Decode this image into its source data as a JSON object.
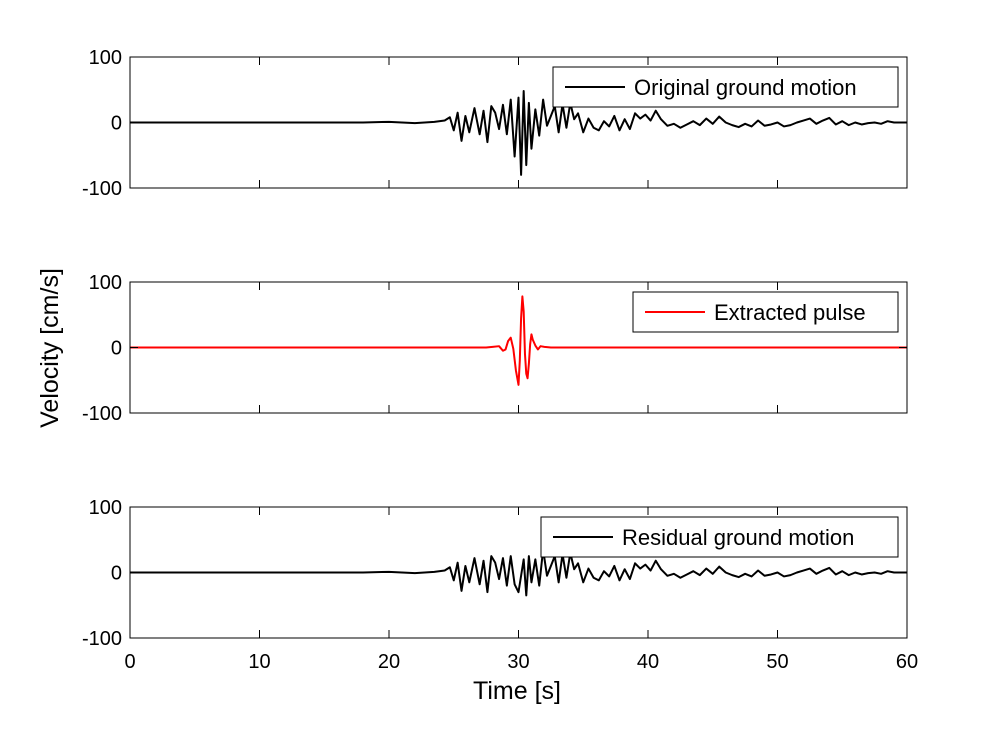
{
  "chart_data": [
    {
      "type": "line",
      "xlabel": "",
      "ylabel": "",
      "xlim": [
        0,
        60
      ],
      "ylim": [
        -100,
        100
      ],
      "xticks": [
        0,
        10,
        20,
        30,
        40,
        50,
        60
      ],
      "yticks": [
        100,
        0,
        -100
      ],
      "show_x_tick_labels": false,
      "grid": false,
      "legend_position": "top-right",
      "series": [
        {
          "name": "Original ground motion",
          "color": "#000000",
          "x": [
            0,
            10,
            18,
            20,
            22,
            23.5,
            24.3,
            24.7,
            25.0,
            25.3,
            25.6,
            25.9,
            26.2,
            26.6,
            27.0,
            27.3,
            27.6,
            27.9,
            28.2,
            28.5,
            28.8,
            29.1,
            29.4,
            29.7,
            30.0,
            30.2,
            30.4,
            30.6,
            30.8,
            31.0,
            31.3,
            31.6,
            31.9,
            32.2,
            32.5,
            32.8,
            33.1,
            33.4,
            33.7,
            34.0,
            34.3,
            34.6,
            35.0,
            35.4,
            35.8,
            36.2,
            36.6,
            37.0,
            37.4,
            37.8,
            38.2,
            38.6,
            39.0,
            39.4,
            39.8,
            40.2,
            40.6,
            41.0,
            41.5,
            42.0,
            42.5,
            43.0,
            43.5,
            44.0,
            44.5,
            45.0,
            45.5,
            46.0,
            46.5,
            47.0,
            47.5,
            48.0,
            48.5,
            49.0,
            49.5,
            50.0,
            50.5,
            51.0,
            51.5,
            52.0,
            52.5,
            53.0,
            53.5,
            54.0,
            54.5,
            55.0,
            55.5,
            56.0,
            56.5,
            57.0,
            57.5,
            58.0,
            58.5,
            59.0,
            60
          ],
          "y": [
            0,
            0,
            0,
            1,
            -1,
            1,
            3,
            8,
            -12,
            15,
            -28,
            10,
            -15,
            22,
            -18,
            18,
            -30,
            25,
            15,
            -10,
            27,
            -18,
            35,
            -52,
            38,
            -80,
            48,
            -65,
            30,
            -40,
            20,
            -20,
            35,
            -5,
            10,
            25,
            -15,
            28,
            -8,
            30,
            5,
            14,
            -15,
            6,
            -8,
            -12,
            2,
            -6,
            10,
            -12,
            5,
            -10,
            14,
            6,
            12,
            3,
            18,
            5,
            -5,
            -2,
            -8,
            -3,
            2,
            -4,
            6,
            -2,
            9,
            0,
            -4,
            -7,
            -2,
            -6,
            3,
            -5,
            -3,
            0,
            -6,
            -4,
            0,
            3,
            6,
            -2,
            3,
            7,
            -3,
            2,
            -4,
            0,
            -3,
            -1,
            0,
            -2,
            2,
            0,
            0
          ]
        }
      ]
    },
    {
      "type": "line",
      "xlabel": "",
      "ylabel": "Velocity [cm/s]",
      "xlim": [
        0,
        60
      ],
      "ylim": [
        -100,
        100
      ],
      "xticks": [
        0,
        10,
        20,
        30,
        40,
        50,
        60
      ],
      "yticks": [
        100,
        0,
        -100
      ],
      "show_x_tick_labels": false,
      "grid": false,
      "legend_position": "top-right",
      "series": [
        {
          "name": "Extracted pulse",
          "color": "#ff0000",
          "x": [
            0,
            26.5,
            27.0,
            27.5,
            28.0,
            28.5,
            28.8,
            29.0,
            29.2,
            29.4,
            29.6,
            29.8,
            30.0,
            30.1,
            30.2,
            30.3,
            30.4,
            30.5,
            30.6,
            30.7,
            30.8,
            30.9,
            31.0,
            31.1,
            31.3,
            31.5,
            31.7,
            32.0,
            32.5,
            33.0,
            60
          ],
          "y": [
            0,
            0,
            0,
            0,
            1,
            2,
            -5,
            -3,
            10,
            15,
            -2,
            -35,
            -57,
            -20,
            45,
            78,
            55,
            -10,
            -40,
            -47,
            -25,
            5,
            20,
            12,
            3,
            -3,
            2,
            1,
            0,
            0,
            0
          ]
        }
      ]
    },
    {
      "type": "line",
      "xlabel": "Time [s]",
      "ylabel": "",
      "xlim": [
        0,
        60
      ],
      "ylim": [
        -100,
        100
      ],
      "xticks": [
        0,
        10,
        20,
        30,
        40,
        50,
        60
      ],
      "yticks": [
        100,
        0,
        -100
      ],
      "show_x_tick_labels": true,
      "grid": false,
      "legend_position": "top-right",
      "series": [
        {
          "name": "Residual ground motion",
          "color": "#000000",
          "x": [
            0,
            10,
            18,
            20,
            22,
            23.5,
            24.3,
            24.7,
            25.0,
            25.3,
            25.6,
            25.9,
            26.2,
            26.6,
            27.0,
            27.3,
            27.6,
            27.9,
            28.2,
            28.5,
            28.8,
            29.1,
            29.4,
            29.7,
            30.0,
            30.2,
            30.4,
            30.6,
            30.8,
            31.0,
            31.3,
            31.6,
            31.9,
            32.2,
            32.5,
            32.8,
            33.1,
            33.4,
            33.7,
            34.0,
            34.3,
            34.6,
            35.0,
            35.4,
            35.8,
            36.2,
            36.6,
            37.0,
            37.4,
            37.8,
            38.2,
            38.6,
            39.0,
            39.4,
            39.8,
            40.2,
            40.6,
            41.0,
            41.5,
            42.0,
            42.5,
            43.0,
            43.5,
            44.0,
            44.5,
            45.0,
            45.5,
            46.0,
            46.5,
            47.0,
            47.5,
            48.0,
            48.5,
            49.0,
            49.5,
            50.0,
            50.5,
            51.0,
            51.5,
            52.0,
            52.5,
            53.0,
            53.5,
            54.0,
            54.5,
            55.0,
            55.5,
            56.0,
            56.5,
            57.0,
            57.5,
            58.0,
            58.5,
            59.0,
            60
          ],
          "y": [
            0,
            0,
            0,
            1,
            -1,
            1,
            3,
            8,
            -12,
            15,
            -28,
            10,
            -15,
            22,
            -18,
            18,
            -30,
            25,
            15,
            -10,
            22,
            -20,
            25,
            -18,
            -30,
            -5,
            20,
            -35,
            25,
            -15,
            20,
            -20,
            35,
            -5,
            10,
            25,
            -15,
            28,
            -8,
            30,
            5,
            14,
            -15,
            6,
            -8,
            -12,
            2,
            -6,
            10,
            -12,
            5,
            -10,
            14,
            6,
            12,
            3,
            18,
            5,
            -5,
            -2,
            -8,
            -3,
            2,
            -4,
            6,
            -2,
            9,
            0,
            -4,
            -7,
            -2,
            -6,
            3,
            -5,
            -3,
            0,
            -6,
            -4,
            0,
            3,
            6,
            -2,
            3,
            7,
            -3,
            2,
            -4,
            0,
            -3,
            -1,
            0,
            -2,
            2,
            0,
            0
          ]
        }
      ]
    }
  ]
}
